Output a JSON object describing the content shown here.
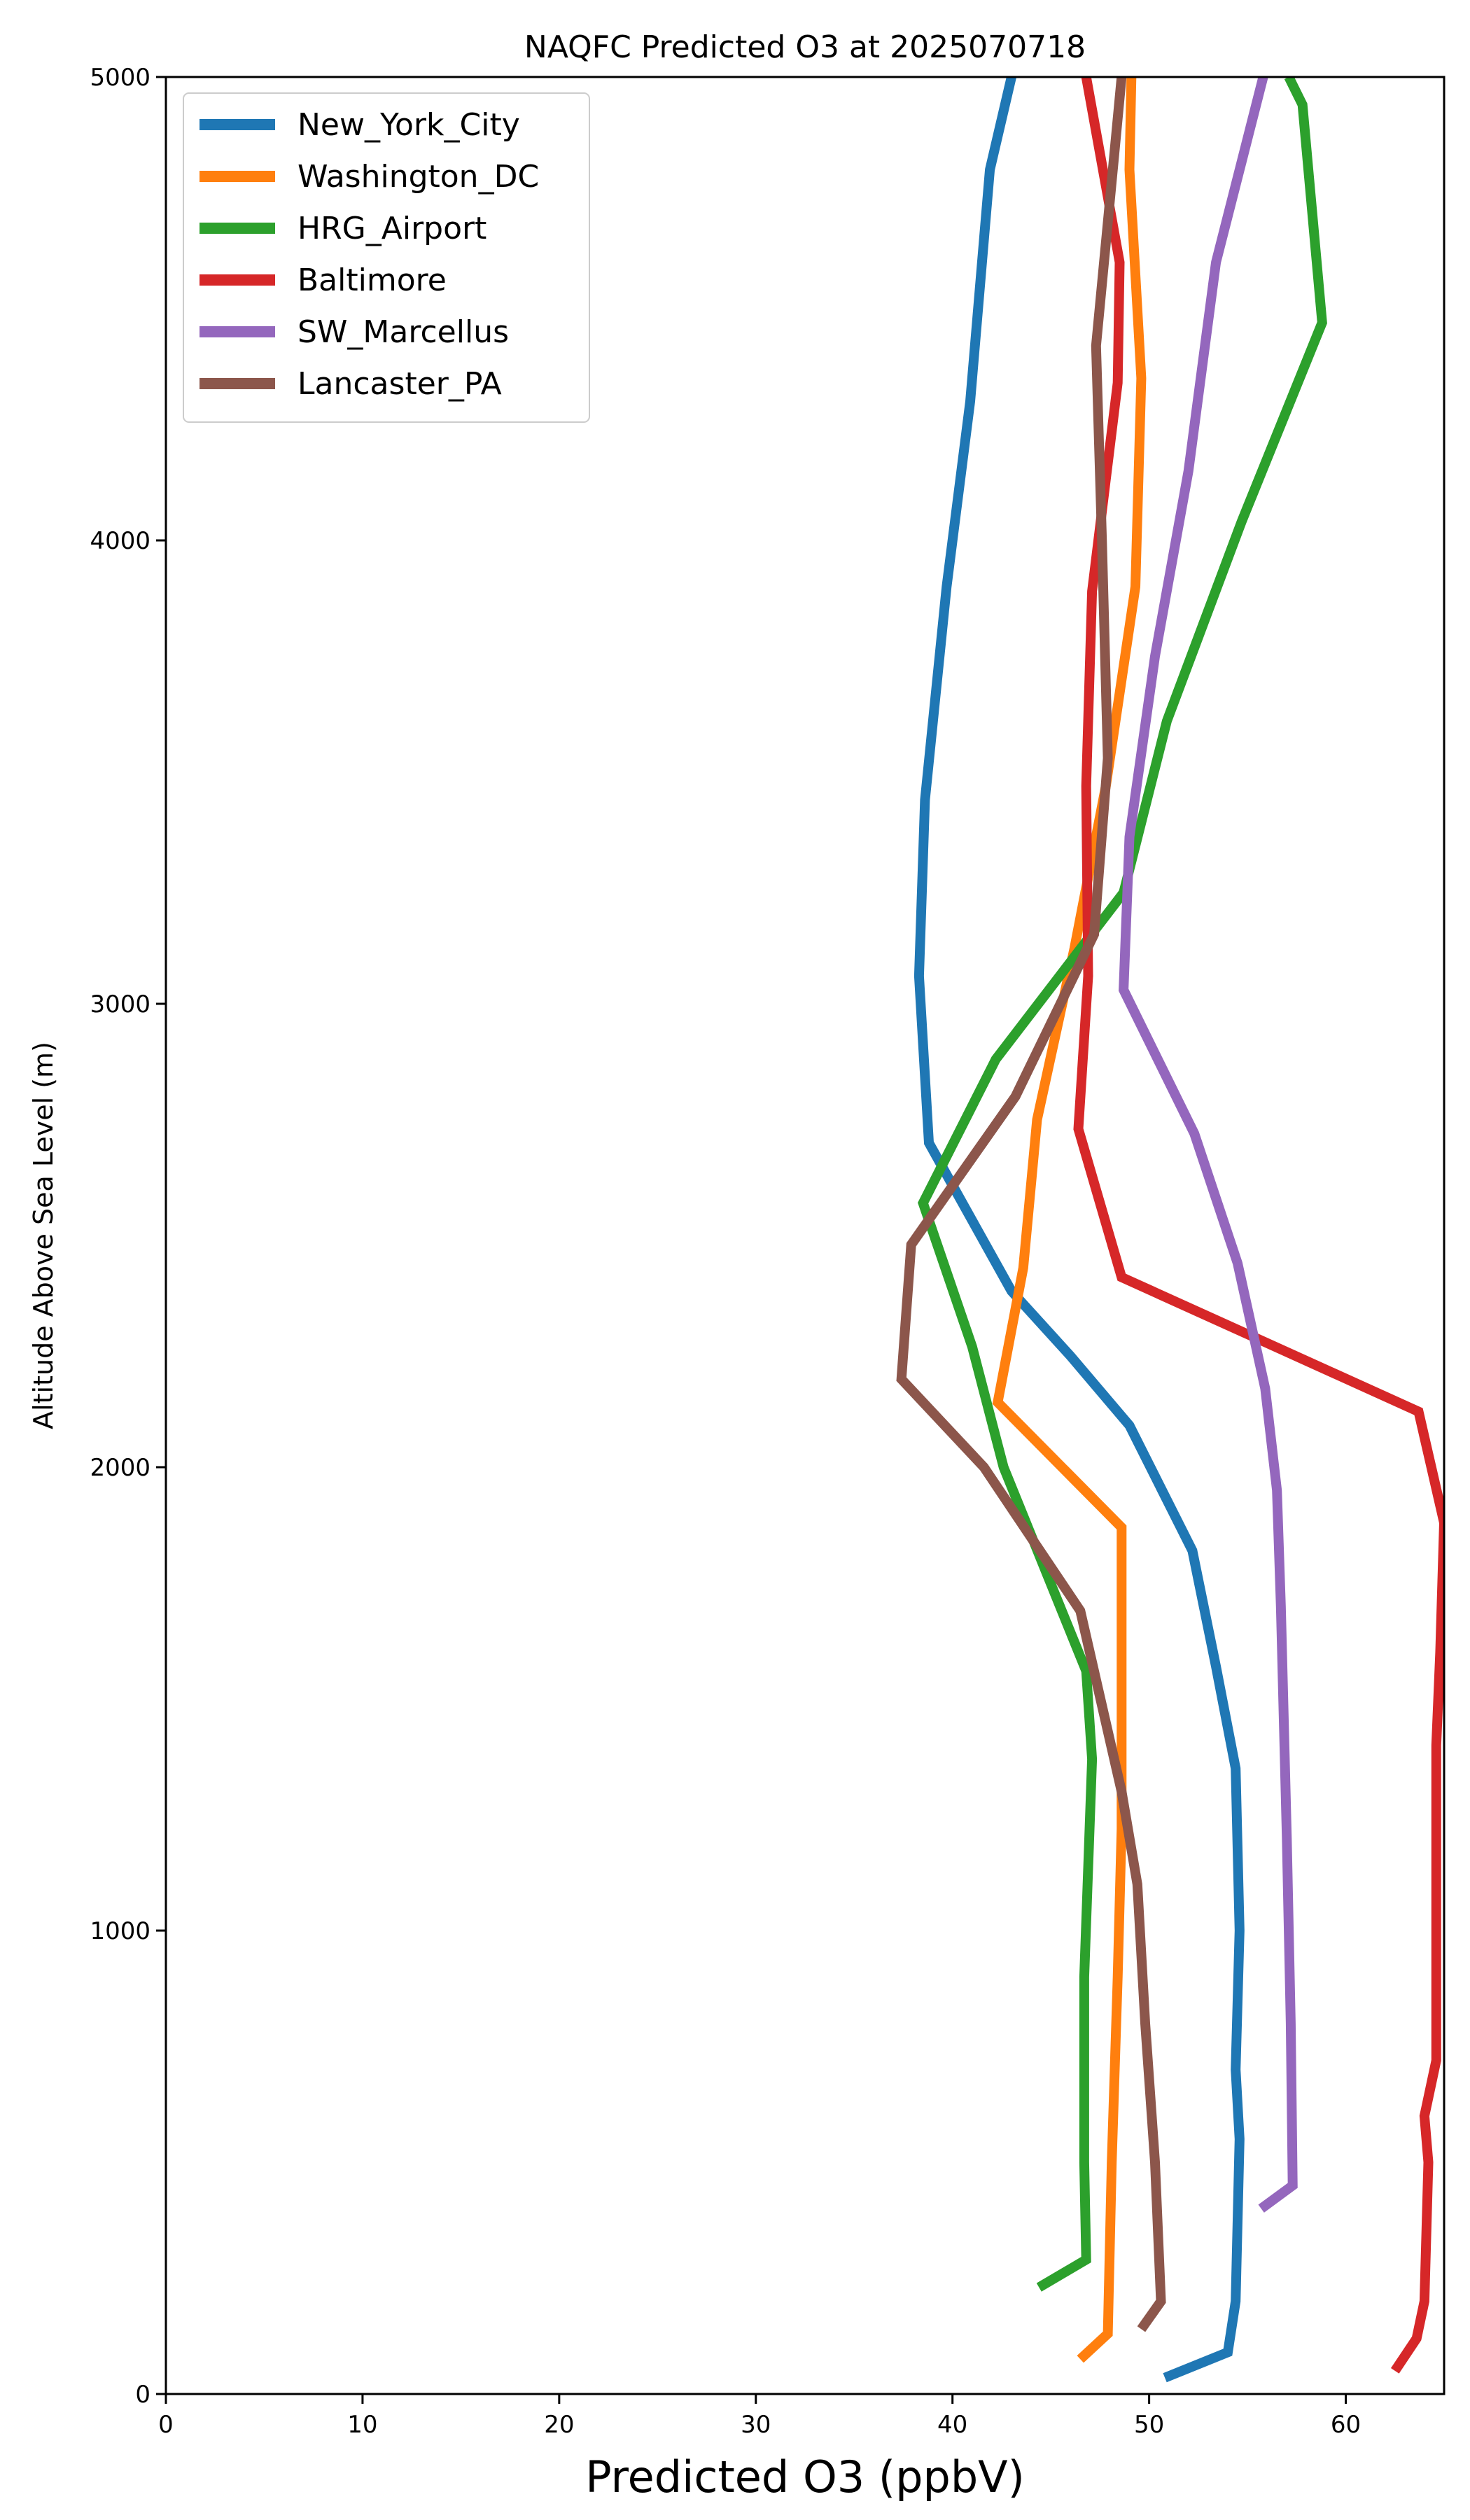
{
  "chart_data": {
    "type": "line",
    "title": "NAQFC Predicted O3 at 2025070718",
    "xlabel": "Predicted O3 (ppbV)",
    "ylabel": "Altitude Above Sea Level (m)",
    "xlim": [
      0,
      65
    ],
    "ylim": [
      0,
      5000
    ],
    "xticks": [
      "0",
      "10",
      "20",
      "30",
      "40",
      "50",
      "60"
    ],
    "yticks": [
      "0",
      "1000",
      "2000",
      "3000",
      "4000",
      "5000"
    ],
    "grid": false,
    "legend_position": "top-left",
    "series": [
      {
        "name": "New_York_City",
        "color": "#1f77b4",
        "points": [
          [
            50.8,
            35
          ],
          [
            54.0,
            90
          ],
          [
            54.4,
            200
          ],
          [
            54.6,
            550
          ],
          [
            54.4,
            700
          ],
          [
            54.6,
            1000
          ],
          [
            54.4,
            1350
          ],
          [
            53.4,
            1570
          ],
          [
            52.2,
            1820
          ],
          [
            49.0,
            2090
          ],
          [
            46.0,
            2240
          ],
          [
            43.0,
            2380
          ],
          [
            38.8,
            2700
          ],
          [
            38.3,
            3060
          ],
          [
            38.6,
            3440
          ],
          [
            39.7,
            3900
          ],
          [
            40.9,
            4300
          ],
          [
            41.9,
            4800
          ],
          [
            43.0,
            5000
          ]
        ]
      },
      {
        "name": "Washington_DC",
        "color": "#ff7f0e",
        "points": [
          [
            46.5,
            75
          ],
          [
            47.9,
            130
          ],
          [
            48.1,
            500
          ],
          [
            48.4,
            900
          ],
          [
            48.6,
            1220
          ],
          [
            48.6,
            1870
          ],
          [
            42.3,
            2140
          ],
          [
            43.6,
            2430
          ],
          [
            44.3,
            2750
          ],
          [
            46.2,
            3120
          ],
          [
            47.8,
            3470
          ],
          [
            49.3,
            3900
          ],
          [
            49.6,
            4350
          ],
          [
            49.0,
            4800
          ],
          [
            49.1,
            5000
          ]
        ]
      },
      {
        "name": "HRG_Airport",
        "color": "#2ca02c",
        "points": [
          [
            44.4,
            230
          ],
          [
            46.8,
            290
          ],
          [
            46.7,
            500
          ],
          [
            46.7,
            900
          ],
          [
            47.1,
            1370
          ],
          [
            46.8,
            1560
          ],
          [
            42.6,
            2000
          ],
          [
            41.0,
            2260
          ],
          [
            38.5,
            2570
          ],
          [
            42.2,
            2880
          ],
          [
            48.7,
            3240
          ],
          [
            50.9,
            3610
          ],
          [
            54.7,
            4040
          ],
          [
            58.8,
            4470
          ],
          [
            57.8,
            4940
          ],
          [
            57.1,
            5000
          ]
        ]
      },
      {
        "name": "Baltimore",
        "color": "#d62728",
        "points": [
          [
            62.5,
            50
          ],
          [
            63.6,
            120
          ],
          [
            64.0,
            200
          ],
          [
            64.2,
            500
          ],
          [
            64.0,
            600
          ],
          [
            64.6,
            720
          ],
          [
            64.6,
            1000
          ],
          [
            64.6,
            1400
          ],
          [
            64.8,
            1600
          ],
          [
            65.0,
            1880
          ],
          [
            63.7,
            2120
          ],
          [
            48.6,
            2410
          ],
          [
            46.4,
            2730
          ],
          [
            46.9,
            3060
          ],
          [
            46.8,
            3470
          ],
          [
            47.1,
            3890
          ],
          [
            48.4,
            4340
          ],
          [
            48.5,
            4600
          ],
          [
            46.8,
            5000
          ]
        ]
      },
      {
        "name": "SW_Marcellus",
        "color": "#9467bd",
        "points": [
          [
            55.7,
            400
          ],
          [
            57.3,
            450
          ],
          [
            57.2,
            800
          ],
          [
            57.0,
            1200
          ],
          [
            56.7,
            1700
          ],
          [
            56.5,
            1950
          ],
          [
            55.9,
            2170
          ],
          [
            54.5,
            2440
          ],
          [
            52.3,
            2720
          ],
          [
            48.7,
            3030
          ],
          [
            49.0,
            3360
          ],
          [
            50.3,
            3750
          ],
          [
            52.0,
            4150
          ],
          [
            53.4,
            4600
          ],
          [
            55.8,
            5000
          ]
        ]
      },
      {
        "name": "Lancaster_PA",
        "color": "#8c564b",
        "points": [
          [
            49.6,
            140
          ],
          [
            50.6,
            200
          ],
          [
            50.3,
            500
          ],
          [
            49.8,
            800
          ],
          [
            49.4,
            1100
          ],
          [
            48.6,
            1300
          ],
          [
            46.5,
            1690
          ],
          [
            41.6,
            2000
          ],
          [
            37.4,
            2190
          ],
          [
            37.9,
            2480
          ],
          [
            43.2,
            2800
          ],
          [
            47.2,
            3150
          ],
          [
            47.9,
            3530
          ],
          [
            47.6,
            4000
          ],
          [
            47.3,
            4420
          ],
          [
            48.2,
            4820
          ],
          [
            48.6,
            5000
          ]
        ]
      }
    ]
  }
}
